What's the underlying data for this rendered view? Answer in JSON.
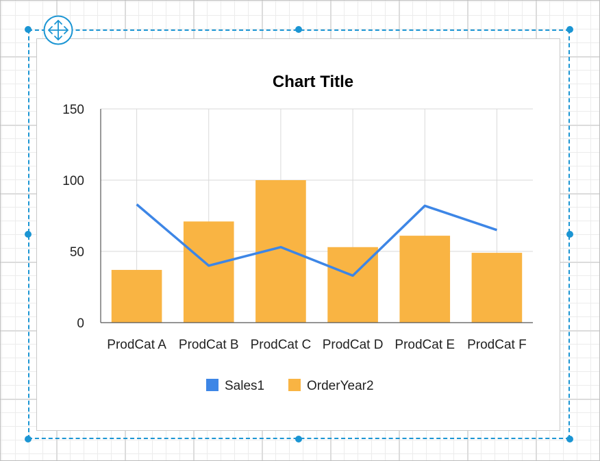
{
  "chart_data": {
    "type": "bar",
    "title": "Chart Title",
    "categories": [
      "ProdCat A",
      "ProdCat B",
      "ProdCat C",
      "ProdCat D",
      "ProdCat E",
      "ProdCat F"
    ],
    "series": [
      {
        "name": "Sales1",
        "type": "line",
        "values": [
          83,
          40,
          53,
          33,
          82,
          65
        ]
      },
      {
        "name": "OrderYear2",
        "type": "bar",
        "values": [
          37,
          71,
          100,
          53,
          61,
          49
        ]
      }
    ],
    "ylim": [
      0,
      150
    ],
    "yticks": [
      "0",
      "50",
      "100",
      "150"
    ],
    "grid": true,
    "legend_position": "bottom",
    "colors": {
      "Sales1": "#3d86e6",
      "OrderYear2": "#f9b443"
    }
  },
  "designer": {
    "move_icon": "move-arrows-icon",
    "accent_color": "#1b95d3"
  }
}
